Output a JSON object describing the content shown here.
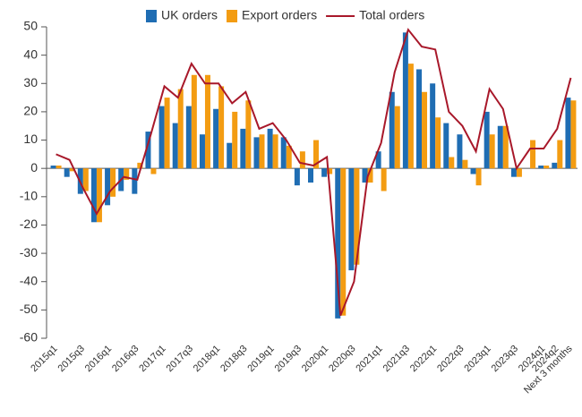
{
  "chart_data": {
    "type": "bar",
    "categories": [
      "2015q1",
      null,
      "2015q3",
      null,
      "2016q1",
      null,
      "2016q3",
      null,
      "2017q1",
      null,
      "2017q3",
      null,
      "2018q1",
      null,
      "2018q3",
      null,
      "2019q1",
      null,
      "2019q3",
      null,
      "2020q1",
      null,
      "2020q3",
      null,
      "2021q1",
      null,
      "2021q3",
      null,
      "2022q1",
      null,
      "2022q3",
      null,
      "2023q1",
      null,
      "2023q3",
      null,
      "2024q1",
      "2024q2",
      "Next 3 months"
    ],
    "series": [
      {
        "name": "UK orders",
        "type": "bar",
        "color": "#1f6db3",
        "values": [
          1,
          -3,
          -9,
          -19,
          -13,
          -8,
          -9,
          13,
          22,
          16,
          22,
          12,
          21,
          9,
          14,
          11,
          14,
          11,
          -6,
          -5,
          -3,
          -53,
          -36,
          -5,
          6,
          27,
          48,
          35,
          30,
          16,
          12,
          -2,
          20,
          15,
          -3,
          0,
          1,
          2,
          25
        ]
      },
      {
        "name": "Export orders",
        "type": "bar",
        "color": "#f39c12",
        "values": [
          1,
          -1,
          -8,
          -19,
          -10,
          -4,
          2,
          -2,
          25,
          28,
          33,
          33,
          29,
          20,
          24,
          12,
          12,
          8,
          6,
          10,
          -2,
          -52,
          -34,
          -5,
          -8,
          22,
          37,
          27,
          18,
          4,
          3,
          -6,
          12,
          15,
          -3,
          10,
          1,
          10,
          24
        ]
      },
      {
        "name": "Total orders",
        "type": "line",
        "color": "#a8182a",
        "values": [
          5,
          3,
          -7,
          -16,
          -8,
          -3,
          -4,
          12,
          29,
          25,
          37,
          30,
          30,
          23,
          27,
          14,
          16,
          10,
          2,
          1,
          4,
          -52,
          -40,
          -3,
          9,
          34,
          49,
          43,
          42,
          20,
          15,
          6,
          28,
          21,
          0,
          7,
          7,
          14,
          32
        ]
      }
    ],
    "ylim": [
      -60,
      50
    ],
    "yticks": [
      -60,
      -50,
      -40,
      -30,
      -20,
      -10,
      0,
      10,
      20,
      30,
      40,
      50
    ]
  }
}
